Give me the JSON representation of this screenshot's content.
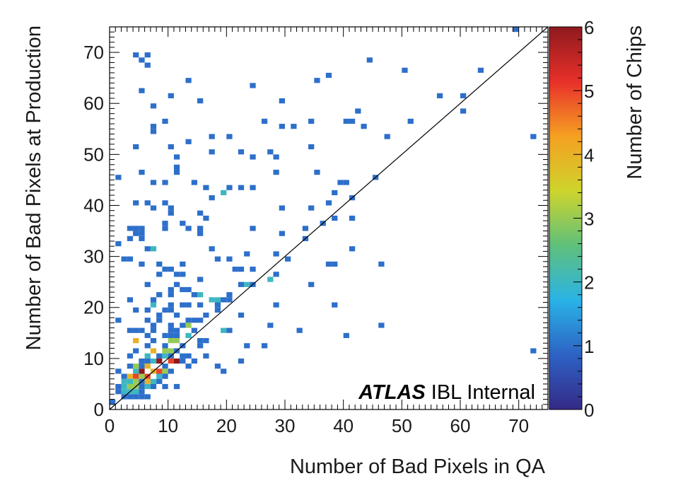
{
  "chart_data": {
    "type": "heatmap",
    "xlabel": "Number of Bad Pixels in QA",
    "ylabel": "Number of Bad Pixels at Production",
    "zlabel": "Number of Chips",
    "xlim": [
      0,
      75
    ],
    "ylim": [
      0,
      75
    ],
    "zlim": [
      0,
      6
    ],
    "x_ticks": [
      "0",
      "10",
      "20",
      "30",
      "40",
      "50",
      "60",
      "70"
    ],
    "y_ticks": [
      "0",
      "10",
      "20",
      "30",
      "40",
      "50",
      "60",
      "70"
    ],
    "z_ticks": [
      "0",
      "1",
      "2",
      "3",
      "4",
      "5",
      "6"
    ],
    "bin_width": 1,
    "diagonal_line": "y = x",
    "annotation": {
      "bold": "ATLAS",
      "rest": " IBL Internal"
    },
    "colormap": [
      "#352a87",
      "#2d62c4",
      "#2ab3e6",
      "#5fc07b",
      "#cfd42c",
      "#f5a022",
      "#e8302a",
      "#8e1a1e"
    ],
    "points": [
      [
        31,
        75,
        1
      ],
      [
        69,
        74,
        1
      ],
      [
        4,
        69,
        1
      ],
      [
        6,
        69,
        1
      ],
      [
        5,
        68,
        1
      ],
      [
        44,
        68,
        1
      ],
      [
        6,
        67,
        1
      ],
      [
        50,
        66,
        1
      ],
      [
        63,
        66,
        1
      ],
      [
        13,
        64,
        1
      ],
      [
        35,
        64,
        1
      ],
      [
        37,
        65,
        1
      ],
      [
        24,
        63,
        1
      ],
      [
        5,
        62,
        1
      ],
      [
        10,
        61,
        1
      ],
      [
        56,
        61,
        1
      ],
      [
        60,
        61,
        1
      ],
      [
        15,
        60,
        1
      ],
      [
        29,
        60,
        1
      ],
      [
        7,
        59,
        1
      ],
      [
        42,
        58,
        1
      ],
      [
        60,
        58,
        1
      ],
      [
        9,
        56,
        1
      ],
      [
        26,
        56,
        1
      ],
      [
        34,
        56,
        1
      ],
      [
        40,
        56,
        1
      ],
      [
        41,
        56,
        1
      ],
      [
        51,
        56,
        1
      ],
      [
        7,
        55,
        1
      ],
      [
        29,
        55,
        1
      ],
      [
        31,
        55,
        1
      ],
      [
        43,
        55,
        1
      ],
      [
        7,
        54,
        1
      ],
      [
        47,
        53,
        1
      ],
      [
        72,
        53,
        1
      ],
      [
        17,
        53,
        1
      ],
      [
        20,
        53,
        1
      ],
      [
        13,
        52,
        1
      ],
      [
        4,
        51,
        1
      ],
      [
        10,
        51,
        1
      ],
      [
        34,
        51,
        1
      ],
      [
        17,
        50,
        1
      ],
      [
        22,
        50,
        1
      ],
      [
        27,
        50,
        1
      ],
      [
        11,
        49,
        1
      ],
      [
        24,
        49,
        1
      ],
      [
        28,
        49,
        1
      ],
      [
        11,
        47,
        1
      ],
      [
        5,
        46,
        1
      ],
      [
        11,
        46,
        1
      ],
      [
        28,
        46,
        1
      ],
      [
        35,
        46,
        1
      ],
      [
        1,
        45,
        1
      ],
      [
        45,
        45,
        1
      ],
      [
        7,
        44,
        1
      ],
      [
        9,
        44,
        1
      ],
      [
        14,
        44,
        1
      ],
      [
        39,
        44,
        1
      ],
      [
        40,
        44,
        1
      ],
      [
        16,
        43,
        1
      ],
      [
        20,
        43,
        1
      ],
      [
        22,
        43,
        1
      ],
      [
        24,
        43,
        1
      ],
      [
        19,
        42,
        2
      ],
      [
        17,
        41,
        1
      ],
      [
        38,
        42,
        1
      ],
      [
        41,
        41,
        1
      ],
      [
        4,
        40,
        1
      ],
      [
        6,
        40,
        1
      ],
      [
        9,
        40,
        1
      ],
      [
        37,
        40,
        1
      ],
      [
        34,
        39,
        1
      ],
      [
        29,
        39,
        1
      ],
      [
        7,
        39,
        1
      ],
      [
        10,
        39,
        1
      ],
      [
        15,
        38,
        1
      ],
      [
        10,
        38,
        1
      ],
      [
        41,
        37,
        1
      ],
      [
        16,
        37,
        1
      ],
      [
        38,
        37,
        1
      ],
      [
        9,
        36,
        1
      ],
      [
        12,
        36,
        1
      ],
      [
        24,
        35,
        1
      ],
      [
        33,
        35,
        1
      ],
      [
        36,
        36,
        1
      ],
      [
        3,
        35,
        1
      ],
      [
        4,
        35,
        1
      ],
      [
        5,
        35,
        1
      ],
      [
        9,
        35,
        1
      ],
      [
        13,
        35,
        1
      ],
      [
        15,
        35,
        1
      ],
      [
        29,
        34,
        1
      ],
      [
        4,
        34,
        1
      ],
      [
        5,
        34,
        1
      ],
      [
        15,
        34,
        1
      ],
      [
        3,
        33,
        1
      ],
      [
        5,
        33,
        1
      ],
      [
        33,
        33,
        1
      ],
      [
        1,
        32,
        1
      ],
      [
        6,
        31,
        1
      ],
      [
        7,
        31,
        2
      ],
      [
        17,
        31,
        1
      ],
      [
        41,
        31,
        1
      ],
      [
        23,
        30,
        1
      ],
      [
        28,
        30,
        1
      ],
      [
        2,
        29,
        1
      ],
      [
        3,
        29,
        1
      ],
      [
        18,
        29,
        1
      ],
      [
        30,
        29,
        1
      ],
      [
        5,
        28,
        1
      ],
      [
        8,
        28,
        1
      ],
      [
        20,
        29,
        1
      ],
      [
        38,
        28,
        1
      ],
      [
        37,
        28,
        1
      ],
      [
        46,
        28,
        1
      ],
      [
        9,
        27,
        1
      ],
      [
        12,
        28,
        1
      ],
      [
        21,
        27,
        1
      ],
      [
        22,
        27,
        1
      ],
      [
        24,
        27,
        1
      ],
      [
        10,
        27,
        1
      ],
      [
        28,
        26,
        1
      ],
      [
        8,
        26,
        1
      ],
      [
        11,
        26,
        1
      ],
      [
        12,
        26,
        1
      ],
      [
        27,
        25,
        2
      ],
      [
        15,
        25,
        1
      ],
      [
        23,
        24,
        2
      ],
      [
        22,
        24,
        1
      ],
      [
        24,
        24,
        1
      ],
      [
        34,
        24,
        1
      ],
      [
        6,
        24,
        1
      ],
      [
        11,
        24,
        1
      ],
      [
        10,
        23,
        1
      ],
      [
        12,
        23,
        1
      ],
      [
        13,
        23,
        1
      ],
      [
        8,
        22,
        1
      ],
      [
        10,
        22,
        1
      ],
      [
        15,
        22,
        2
      ],
      [
        14,
        22,
        1
      ],
      [
        20,
        22,
        1
      ],
      [
        17,
        21,
        2
      ],
      [
        18,
        21,
        2
      ],
      [
        19,
        21,
        1
      ],
      [
        20,
        21,
        1
      ],
      [
        3,
        21,
        1
      ],
      [
        7,
        21,
        1
      ],
      [
        10,
        20,
        1
      ],
      [
        13,
        20,
        1
      ],
      [
        12,
        20,
        1
      ],
      [
        15,
        20,
        1
      ],
      [
        18,
        20,
        1
      ],
      [
        7,
        20,
        2
      ],
      [
        28,
        20,
        1
      ],
      [
        38,
        20,
        1
      ],
      [
        4,
        19,
        1
      ],
      [
        6,
        19,
        1
      ],
      [
        9,
        19,
        1
      ],
      [
        10,
        19,
        1
      ],
      [
        18,
        19,
        1
      ],
      [
        22,
        18,
        1
      ],
      [
        8,
        18,
        1
      ],
      [
        11,
        18,
        1
      ],
      [
        16,
        18,
        1
      ],
      [
        1,
        17,
        1
      ],
      [
        6,
        17,
        1
      ],
      [
        8,
        17,
        1
      ],
      [
        13,
        17,
        1
      ],
      [
        14,
        17,
        1
      ],
      [
        15,
        17,
        1
      ],
      [
        7,
        16,
        1
      ],
      [
        10,
        16,
        1
      ],
      [
        12,
        16,
        1
      ],
      [
        13,
        16,
        3
      ],
      [
        27,
        16,
        1
      ],
      [
        46,
        16,
        1
      ],
      [
        3,
        15,
        1
      ],
      [
        4,
        15,
        1
      ],
      [
        5,
        15,
        1
      ],
      [
        7,
        15,
        1
      ],
      [
        11,
        15,
        1
      ],
      [
        14,
        15,
        1
      ],
      [
        19,
        15,
        2
      ],
      [
        20,
        15,
        1
      ],
      [
        32,
        15,
        1
      ],
      [
        10,
        15,
        1
      ],
      [
        40,
        14,
        1
      ],
      [
        6,
        14,
        1
      ],
      [
        9,
        14,
        1
      ],
      [
        10,
        14,
        1
      ],
      [
        11,
        14,
        1
      ],
      [
        13,
        14,
        2
      ],
      [
        4,
        13,
        4
      ],
      [
        7,
        13,
        1
      ],
      [
        10,
        13,
        3
      ],
      [
        11,
        13,
        3
      ],
      [
        15,
        13,
        1
      ],
      [
        16,
        13,
        1
      ],
      [
        9,
        12,
        1
      ],
      [
        6,
        12,
        1
      ],
      [
        12,
        12,
        1
      ],
      [
        15,
        12,
        1
      ],
      [
        23,
        12,
        1
      ],
      [
        26,
        12,
        1
      ],
      [
        7,
        11,
        4
      ],
      [
        9,
        11,
        3
      ],
      [
        10,
        11,
        3
      ],
      [
        11,
        11,
        1
      ],
      [
        4,
        11,
        1
      ],
      [
        72,
        11,
        1
      ],
      [
        3,
        10,
        1
      ],
      [
        6,
        10,
        2
      ],
      [
        8,
        10,
        1
      ],
      [
        9,
        10,
        2
      ],
      [
        10,
        10,
        1
      ],
      [
        12,
        10,
        1
      ],
      [
        13,
        10,
        1
      ],
      [
        16,
        10,
        1
      ],
      [
        5,
        9,
        1
      ],
      [
        6,
        9,
        1
      ],
      [
        7,
        9,
        2
      ],
      [
        8,
        9,
        6
      ],
      [
        10,
        9,
        5
      ],
      [
        11,
        9,
        6
      ],
      [
        12,
        9,
        1
      ],
      [
        14,
        9,
        1
      ],
      [
        22,
        9,
        1
      ],
      [
        4,
        8,
        3
      ],
      [
        5,
        8,
        1
      ],
      [
        9,
        8,
        1
      ],
      [
        13,
        8,
        1
      ],
      [
        18,
        8,
        1
      ],
      [
        3,
        8,
        1
      ],
      [
        6,
        8,
        4
      ],
      [
        7,
        7,
        4
      ],
      [
        8,
        7,
        5
      ],
      [
        9,
        7,
        3
      ],
      [
        10,
        7,
        1
      ],
      [
        5,
        7,
        6
      ],
      [
        4,
        7,
        2
      ],
      [
        1,
        7,
        1
      ],
      [
        2,
        6,
        1
      ],
      [
        3,
        6,
        4
      ],
      [
        4,
        6,
        5
      ],
      [
        6,
        6,
        5
      ],
      [
        9,
        6,
        1
      ],
      [
        19,
        7,
        1
      ],
      [
        5,
        6,
        3
      ],
      [
        6,
        5,
        4
      ],
      [
        5,
        5,
        1
      ],
      [
        3,
        5,
        2
      ],
      [
        4,
        5,
        3
      ],
      [
        7,
        5,
        2
      ],
      [
        8,
        6,
        2
      ],
      [
        8,
        5,
        1
      ],
      [
        2,
        5,
        2
      ],
      [
        1,
        4,
        1
      ],
      [
        2,
        4,
        2
      ],
      [
        3,
        4,
        3
      ],
      [
        4,
        4,
        3
      ],
      [
        5,
        4,
        1
      ],
      [
        6,
        4,
        2
      ],
      [
        7,
        4,
        1
      ],
      [
        9,
        4,
        1
      ],
      [
        11,
        4,
        1
      ],
      [
        1,
        3,
        1
      ],
      [
        2,
        3,
        2
      ],
      [
        3,
        3,
        2
      ],
      [
        4,
        3,
        2
      ],
      [
        5,
        3,
        1
      ],
      [
        2,
        2,
        1
      ],
      [
        3,
        2,
        1
      ],
      [
        4,
        2,
        1
      ],
      [
        5,
        2,
        1
      ],
      [
        6,
        2,
        1
      ],
      [
        0,
        1,
        1
      ]
    ]
  }
}
